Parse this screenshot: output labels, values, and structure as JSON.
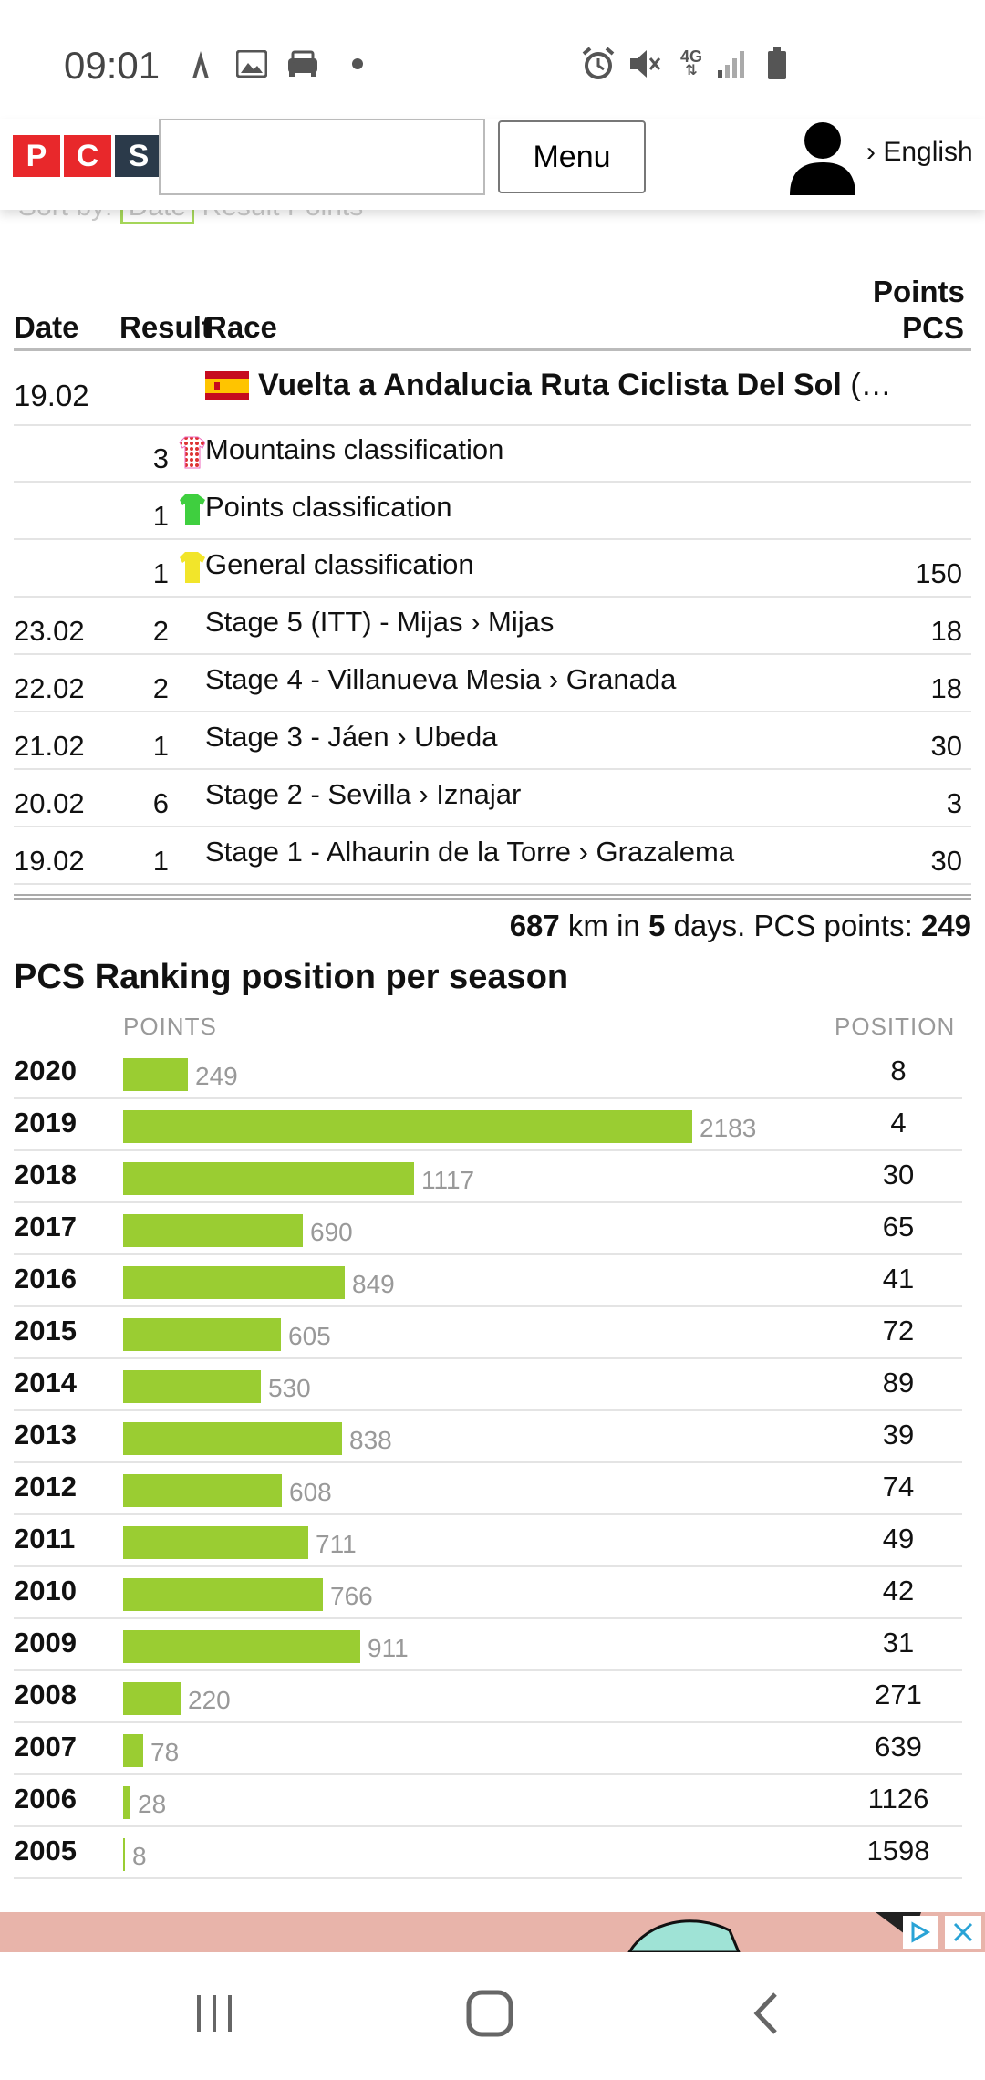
{
  "status_bar": {
    "time": "09:01",
    "icons": [
      "strava-icon",
      "image-icon",
      "car-icon",
      "dot-icon",
      "alarm-icon",
      "mute-icon",
      "4g-icon",
      "signal-icon",
      "battery-icon"
    ]
  },
  "header": {
    "logo_letters": [
      "P",
      "C",
      "S"
    ],
    "logo_colors": [
      "#e8282b",
      "#e8282b",
      "#2b3a4a"
    ],
    "search_placeholder": "",
    "menu_label": "Menu",
    "language_label": "› English"
  },
  "sort_by": {
    "label": "Sort by:",
    "options": [
      "Date",
      "Result",
      "Points"
    ],
    "selected": "Date"
  },
  "results_table": {
    "headers": {
      "date": "Date",
      "result": "Result",
      "race": "Race",
      "points_line1": "Points",
      "points_line2": "PCS"
    },
    "race_header": {
      "date": "19.02",
      "flag": "Spain",
      "name": "Vuelta a Andalucia Ruta Ciclista Del Sol",
      "suffix": "(…"
    },
    "rows": [
      {
        "date": "",
        "result": "3",
        "jersey": "polka-dot",
        "race": "Mountains classification",
        "points": ""
      },
      {
        "date": "",
        "result": "1",
        "jersey": "green",
        "race": "Points classification",
        "points": ""
      },
      {
        "date": "",
        "result": "1",
        "jersey": "yellow",
        "race": "General classification",
        "points": "150"
      },
      {
        "date": "23.02",
        "result": "2",
        "jersey": "",
        "race": "Stage 5 (ITT) - Mijas › Mijas",
        "points": "18"
      },
      {
        "date": "22.02",
        "result": "2",
        "jersey": "",
        "race": "Stage 4 - Villanueva Mesia › Granada",
        "points": "18"
      },
      {
        "date": "21.02",
        "result": "1",
        "jersey": "",
        "race": "Stage 3 - Jáen › Ubeda",
        "points": "30"
      },
      {
        "date": "20.02",
        "result": "6",
        "jersey": "",
        "race": "Stage 2 - Sevilla › Iznajar",
        "points": "3"
      },
      {
        "date": "19.02",
        "result": "1",
        "jersey": "",
        "race": "Stage 1 - Alhaurin de la Torre › Grazalema",
        "points": "30"
      }
    ],
    "summary": {
      "km": "687",
      "km_text": " km in ",
      "days": "5",
      "days_text": " days. PCS points: ",
      "points": "249"
    }
  },
  "ranking": {
    "title": "PCS Ranking position per season",
    "points_header": "POINTS",
    "position_header": "POSITION",
    "bar_color": "#9acd32",
    "rows": [
      {
        "year": "2020",
        "points": 249,
        "position": "8"
      },
      {
        "year": "2019",
        "points": 2183,
        "position": "4"
      },
      {
        "year": "2018",
        "points": 1117,
        "position": "30"
      },
      {
        "year": "2017",
        "points": 690,
        "position": "65"
      },
      {
        "year": "2016",
        "points": 849,
        "position": "41"
      },
      {
        "year": "2015",
        "points": 605,
        "position": "72"
      },
      {
        "year": "2014",
        "points": 530,
        "position": "89"
      },
      {
        "year": "2013",
        "points": 838,
        "position": "39"
      },
      {
        "year": "2012",
        "points": 608,
        "position": "74"
      },
      {
        "year": "2011",
        "points": 711,
        "position": "49"
      },
      {
        "year": "2010",
        "points": 766,
        "position": "42"
      },
      {
        "year": "2009",
        "points": 911,
        "position": "31"
      },
      {
        "year": "2008",
        "points": 220,
        "position": "271"
      },
      {
        "year": "2007",
        "points": 78,
        "position": "639"
      },
      {
        "year": "2006",
        "points": 28,
        "position": "1126"
      },
      {
        "year": "2005",
        "points": 8,
        "position": "1598"
      }
    ]
  },
  "ad_banner": {
    "icons": [
      "adchoices-icon",
      "close-icon"
    ]
  },
  "nav_bar": {
    "icons": [
      "recent-apps-icon",
      "home-icon",
      "back-icon"
    ]
  }
}
